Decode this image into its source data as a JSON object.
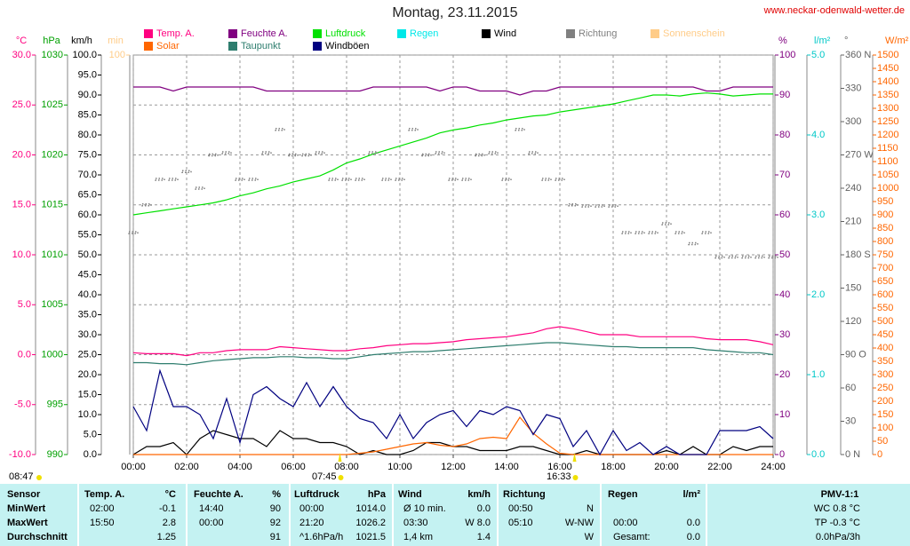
{
  "chart_data": {
    "type": "line",
    "title": "Montag, 23.11.2015",
    "source": "www.neckar-odenwald-wetter.de",
    "x": [
      0,
      0.5,
      1,
      1.5,
      2,
      2.5,
      3,
      3.5,
      4,
      4.5,
      5,
      5.5,
      6,
      6.5,
      7,
      7.5,
      8,
      8.5,
      9,
      9.5,
      10,
      10.5,
      11,
      11.5,
      12,
      12.5,
      13,
      13.5,
      14,
      14.5,
      15,
      15.5,
      16,
      16.5,
      17,
      17.5,
      18,
      18.5,
      19,
      19.5,
      20,
      20.5,
      21,
      21.5,
      22,
      22.5,
      23,
      23.5,
      24
    ],
    "xlim": [
      0,
      24
    ],
    "xticks": [
      {
        "value": 0,
        "label": "00:00"
      },
      {
        "value": 2,
        "label": "02:00"
      },
      {
        "value": 4,
        "label": "04:00"
      },
      {
        "value": 6,
        "label": "06:00"
      },
      {
        "value": 8,
        "label": "08:00"
      },
      {
        "value": 10,
        "label": "10:00"
      },
      {
        "value": 12,
        "label": "12:00"
      },
      {
        "value": 14,
        "label": "14:00"
      },
      {
        "value": 16,
        "label": "16:00"
      },
      {
        "value": 18,
        "label": "18:00"
      },
      {
        "value": 20,
        "label": "20:00"
      },
      {
        "value": 22,
        "label": "22:00"
      },
      {
        "value": 24,
        "label": "24:00"
      }
    ],
    "grid": true,
    "axes": {
      "temp": {
        "label": "°C",
        "color": "#ff0080",
        "lim": [
          -10,
          30
        ],
        "ticks": [
          {
            "value": -10,
            "label": "-10.0"
          },
          {
            "value": -5,
            "label": "-5.0"
          },
          {
            "value": 0,
            "label": "0.0"
          },
          {
            "value": 5,
            "label": "5.0"
          },
          {
            "value": 10,
            "label": "10.0"
          },
          {
            "value": 15,
            "label": "15.0"
          },
          {
            "value": 20,
            "label": "20.0"
          },
          {
            "value": 25,
            "label": "25.0"
          },
          {
            "value": 30,
            "label": "30.0"
          }
        ]
      },
      "hpa": {
        "label": "hPa",
        "color": "#00a000",
        "lim": [
          990,
          1030
        ],
        "ticks": [
          990,
          995,
          1000,
          1005,
          1010,
          1015,
          1020,
          1025,
          1030
        ]
      },
      "kmh": {
        "label": "km/h",
        "color": "#000000",
        "lim": [
          0,
          100
        ],
        "ticks": [
          {
            "value": 0,
            "label": "0.0"
          },
          {
            "value": 5,
            "label": "5.0"
          },
          {
            "value": 10,
            "label": "10.0"
          },
          {
            "value": 15,
            "label": "15.0"
          },
          {
            "value": 20,
            "label": "20.0"
          },
          {
            "value": 25,
            "label": "25.0"
          },
          {
            "value": 30,
            "label": "30.0"
          },
          {
            "value": 35,
            "label": "35.0"
          },
          {
            "value": 40,
            "label": "40.0"
          },
          {
            "value": 45,
            "label": "45.0"
          },
          {
            "value": 50,
            "label": "50.0"
          },
          {
            "value": 55,
            "label": "55.0"
          },
          {
            "value": 60,
            "label": "60.0"
          },
          {
            "value": 65,
            "label": "65.0"
          },
          {
            "value": 70,
            "label": "70.0"
          },
          {
            "value": 75,
            "label": "75.0"
          },
          {
            "value": 80,
            "label": "80.0"
          },
          {
            "value": 85,
            "label": "85.0"
          },
          {
            "value": 90,
            "label": "90.0"
          },
          {
            "value": 95,
            "label": "95.0"
          },
          {
            "value": 100,
            "label": "100.0"
          }
        ]
      },
      "min": {
        "label": "min",
        "color": "#ffcc88",
        "lim": [
          0,
          100
        ],
        "ticks": [
          100
        ]
      },
      "pct": {
        "label": "%",
        "color": "#800080",
        "lim": [
          0,
          100
        ],
        "ticks": [
          0,
          10,
          20,
          30,
          40,
          50,
          60,
          70,
          80,
          90,
          100
        ]
      },
      "rain": {
        "label": "l/m²",
        "color": "#00c8c8",
        "lim": [
          0,
          5
        ],
        "ticks": [
          {
            "value": 0,
            "label": "0.0"
          },
          {
            "value": 1,
            "label": "1.0"
          },
          {
            "value": 2,
            "label": "2.0"
          },
          {
            "value": 3,
            "label": "3.0"
          },
          {
            "value": 4,
            "label": "4.0"
          },
          {
            "value": 5,
            "label": "5.0"
          }
        ]
      },
      "dir": {
        "label": "°",
        "color": "#606060",
        "lim": [
          0,
          360
        ],
        "ticks": [
          {
            "value": 0,
            "label": "0 N"
          },
          30,
          60,
          {
            "value": 90,
            "label": "90 O"
          },
          120,
          150,
          {
            "value": 180,
            "label": "180 S"
          },
          210,
          240,
          {
            "value": 270,
            "label": "270 W"
          },
          300,
          330,
          {
            "value": 360,
            "label": "360 N"
          }
        ]
      },
      "solar": {
        "label": "W/m²",
        "color": "#ff6600",
        "lim": [
          0,
          1500
        ],
        "ticks": [
          0,
          50,
          100,
          150,
          200,
          250,
          300,
          350,
          400,
          450,
          500,
          550,
          600,
          650,
          700,
          750,
          800,
          850,
          900,
          950,
          1000,
          1050,
          1100,
          1150,
          1200,
          1250,
          1300,
          1350,
          1400,
          1450,
          1500
        ]
      }
    },
    "series": [
      {
        "name": "Temp. A.",
        "color": "#ff0080",
        "axis": "temp",
        "values": [
          0.2,
          0.1,
          0.1,
          0.1,
          -0.1,
          0.2,
          0.2,
          0.4,
          0.5,
          0.5,
          0.5,
          0.8,
          0.7,
          0.6,
          0.5,
          0.4,
          0.4,
          0.6,
          0.7,
          0.9,
          1.0,
          1.1,
          1.1,
          1.2,
          1.3,
          1.5,
          1.6,
          1.7,
          1.8,
          2.0,
          2.2,
          2.6,
          2.8,
          2.6,
          2.3,
          2.0,
          2.0,
          2.0,
          1.8,
          1.8,
          1.8,
          1.8,
          1.8,
          1.6,
          1.5,
          1.5,
          1.5,
          1.3,
          1.0
        ]
      },
      {
        "name": "Feuchte A.",
        "color": "#800080",
        "axis": "pct",
        "values": [
          92,
          92,
          92,
          91,
          92,
          92,
          92,
          92,
          92,
          92,
          91,
          91,
          91,
          91,
          91,
          91,
          91,
          91,
          92,
          92,
          92,
          92,
          92,
          91,
          92,
          92,
          91,
          91,
          91,
          90,
          91,
          91,
          92,
          92,
          92,
          92,
          92,
          92,
          92,
          92,
          92,
          92,
          92,
          91,
          91,
          92,
          92,
          92,
          92
        ]
      },
      {
        "name": "Luftdruck",
        "color": "#00e000",
        "axis": "hpa",
        "values": [
          1014.0,
          1014.2,
          1014.4,
          1014.6,
          1014.8,
          1015.0,
          1015.2,
          1015.5,
          1015.9,
          1016.2,
          1016.6,
          1016.9,
          1017.3,
          1017.6,
          1017.9,
          1018.5,
          1019.2,
          1019.6,
          1020.1,
          1020.5,
          1020.9,
          1021.3,
          1021.7,
          1022.2,
          1022.5,
          1022.7,
          1023.0,
          1023.2,
          1023.5,
          1023.7,
          1023.9,
          1024.0,
          1024.3,
          1024.5,
          1024.7,
          1024.9,
          1025.1,
          1025.4,
          1025.7,
          1026.0,
          1026.0,
          1025.9,
          1026.1,
          1026.2,
          1026.1,
          1025.9,
          1026.0,
          1026.1,
          1026.1
        ]
      },
      {
        "name": "Regen",
        "color": "#00e8e8",
        "axis": "rain"
      },
      {
        "name": "Wind",
        "color": "#000000",
        "axis": "kmh",
        "values": [
          0,
          2,
          2,
          3,
          0,
          4,
          6,
          5,
          4,
          4,
          2,
          6,
          4,
          4,
          3,
          3,
          2,
          0,
          1,
          0,
          0,
          1,
          3,
          3,
          2,
          2,
          1,
          1,
          1,
          2,
          2,
          1,
          0,
          0,
          1,
          0,
          0,
          0,
          0,
          0,
          1,
          0,
          2,
          0,
          0,
          2,
          1,
          2,
          2
        ]
      },
      {
        "name": "Richtung",
        "color": "#808080",
        "axis": "dir",
        "style": "dots",
        "values": [
          200,
          225,
          248,
          248,
          255,
          240,
          270,
          272,
          248,
          248,
          272,
          293,
          270,
          270,
          272,
          248,
          248,
          248,
          272,
          248,
          248,
          293,
          270,
          272,
          248,
          248,
          270,
          272,
          248,
          293,
          272,
          248,
          248,
          225,
          224,
          224,
          224,
          200,
          200,
          200,
          208,
          200,
          190,
          200,
          178,
          178,
          178,
          178,
          178
        ]
      },
      {
        "name": "Sonnenschein",
        "color": "#ffcc88",
        "axis": "min"
      },
      {
        "name": "Solar",
        "color": "#ff6600",
        "axis": "solar",
        "values": [
          0,
          0,
          0,
          0,
          0,
          0,
          0,
          0,
          0,
          0,
          0,
          0,
          0,
          0,
          0,
          0,
          0,
          5,
          10,
          20,
          30,
          40,
          45,
          35,
          30,
          40,
          60,
          65,
          60,
          140,
          80,
          40,
          5,
          0,
          0,
          0,
          0,
          0,
          0,
          0,
          0,
          0,
          0,
          0,
          0,
          0,
          0,
          0,
          0
        ]
      },
      {
        "name": "Taupunkt",
        "color": "#2e7d6e",
        "axis": "temp",
        "values": [
          -0.8,
          -0.8,
          -0.9,
          -0.9,
          -1.0,
          -0.8,
          -0.6,
          -0.5,
          -0.4,
          -0.3,
          -0.3,
          -0.2,
          -0.2,
          -0.3,
          -0.3,
          -0.4,
          -0.4,
          -0.2,
          0.0,
          0.1,
          0.2,
          0.3,
          0.3,
          0.4,
          0.5,
          0.6,
          0.7,
          0.8,
          0.9,
          1.0,
          1.1,
          1.2,
          1.2,
          1.1,
          1.0,
          0.9,
          0.8,
          0.8,
          0.7,
          0.7,
          0.7,
          0.7,
          0.7,
          0.5,
          0.4,
          0.3,
          0.2,
          0.2,
          0.0
        ]
      },
      {
        "name": "Windböen",
        "color": "#000080",
        "axis": "kmh",
        "values": [
          12,
          6,
          21,
          12,
          12,
          10,
          4,
          14,
          3,
          15,
          17,
          14,
          12,
          18,
          12,
          17,
          12,
          9,
          8,
          4,
          10,
          4,
          8,
          10,
          11,
          7,
          11,
          10,
          12,
          11,
          5,
          10,
          9,
          2,
          6,
          0,
          6,
          1,
          3,
          0,
          2,
          0,
          0,
          0,
          6,
          6,
          6,
          7,
          4
        ]
      }
    ],
    "sun": {
      "daylight": "08:47",
      "events": [
        {
          "value": 7.75,
          "label": "07:45"
        },
        {
          "value": 16.55,
          "label": "16:33"
        }
      ]
    }
  },
  "table": {
    "header": [
      "Sensor",
      "Temp. A.",
      "°C",
      "Feuchte A.",
      "%",
      "Luftdruck",
      "hPa",
      "Wind",
      "km/h",
      "Richtung",
      null,
      "Regen",
      "l/m²",
      "PMV-1:1"
    ],
    "rows": [
      [
        "MinWert",
        "02:00",
        "-0.1",
        "14:40",
        "90",
        "00:00",
        "1014.0",
        "Ø 10 min.",
        "0.0",
        "00:50",
        "N",
        null,
        null,
        "WC 0.8 °C"
      ],
      [
        "MaxWert",
        "15:50",
        "2.8",
        "00:00",
        "92",
        "21:20",
        "1026.2",
        "03:30",
        "W 8.0",
        "05:10",
        "W-NW",
        "00:00",
        "0.0",
        "TP -0.3 °C"
      ],
      [
        "Durchschnitt",
        null,
        "1.25",
        null,
        "91",
        "^1.6hPa/h",
        "1021.5",
        "1,4 km",
        "1.4",
        null,
        "W",
        "Gesamt:",
        "0.0",
        "0.0hPa/3h"
      ]
    ]
  }
}
